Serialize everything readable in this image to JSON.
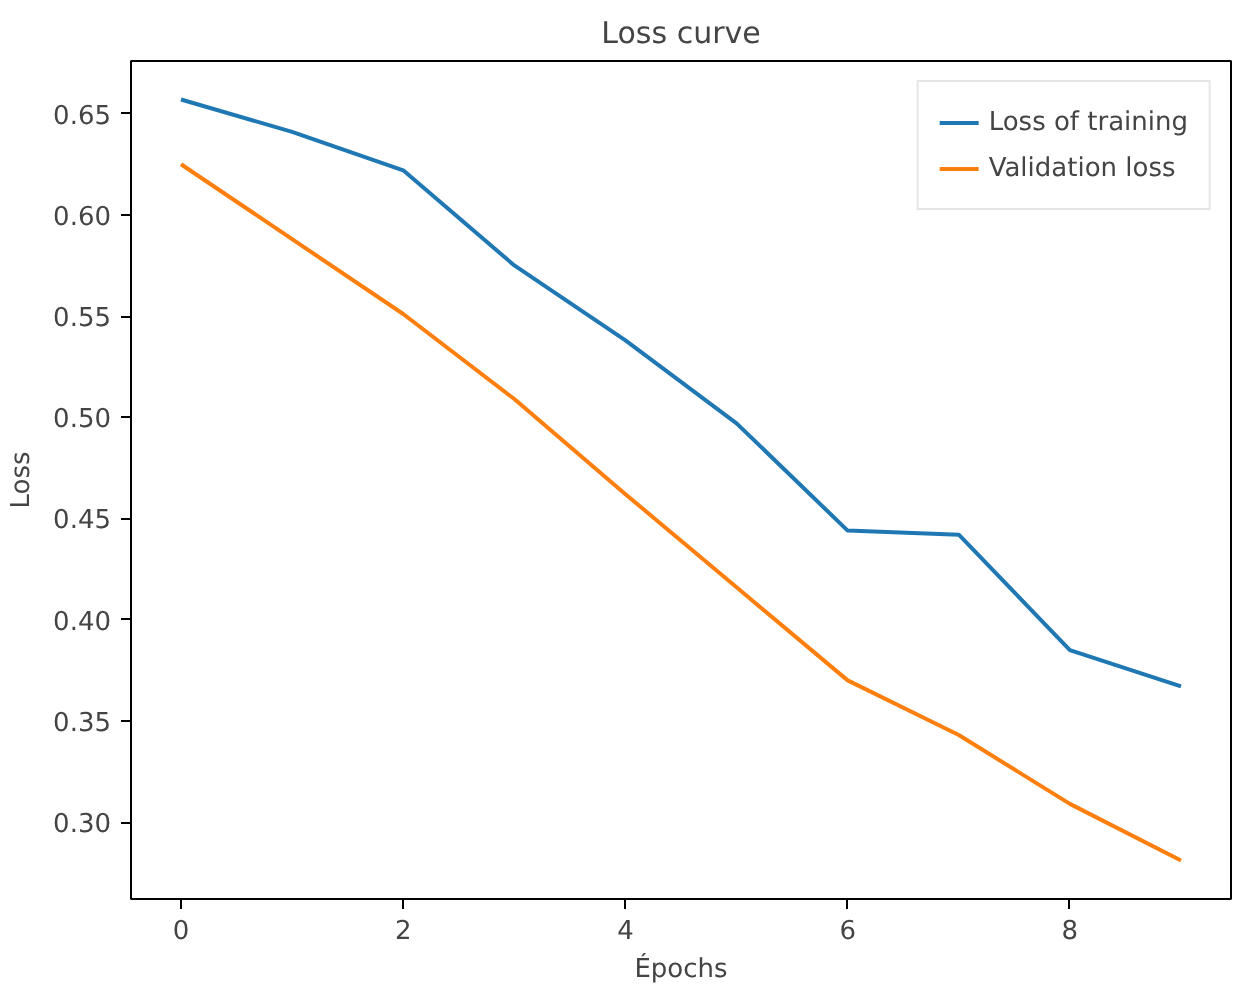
{
  "chart_data": {
    "type": "line",
    "title": "Loss curve",
    "xlabel": "Épochs",
    "ylabel": "Loss",
    "x": [
      0,
      1,
      2,
      3,
      4,
      5,
      6,
      7,
      8,
      9
    ],
    "series": [
      {
        "name": "Loss of training",
        "color": "#1f77b4",
        "values": [
          0.657,
          0.641,
          0.622,
          0.575,
          0.538,
          0.497,
          0.444,
          0.442,
          0.385,
          0.367
        ]
      },
      {
        "name": "Validation loss",
        "color": "#ff7f0e",
        "values": [
          0.625,
          0.588,
          0.551,
          0.509,
          0.462,
          0.416,
          0.37,
          0.343,
          0.309,
          0.281
        ]
      }
    ],
    "xlim": [
      -0.45,
      9.45
    ],
    "ylim": [
      0.262,
      0.676
    ],
    "xticks": [
      0,
      2,
      4,
      6,
      8
    ],
    "yticks": [
      {
        "value": 0.3,
        "label": "0.30"
      },
      0.35,
      {
        "value": 0.4,
        "label": "0.40"
      },
      0.45,
      {
        "value": 0.5,
        "label": "0.50"
      },
      0.55,
      {
        "value": 0.6,
        "label": "0.60"
      },
      0.65
    ],
    "legend": "top right",
    "grid": false
  }
}
